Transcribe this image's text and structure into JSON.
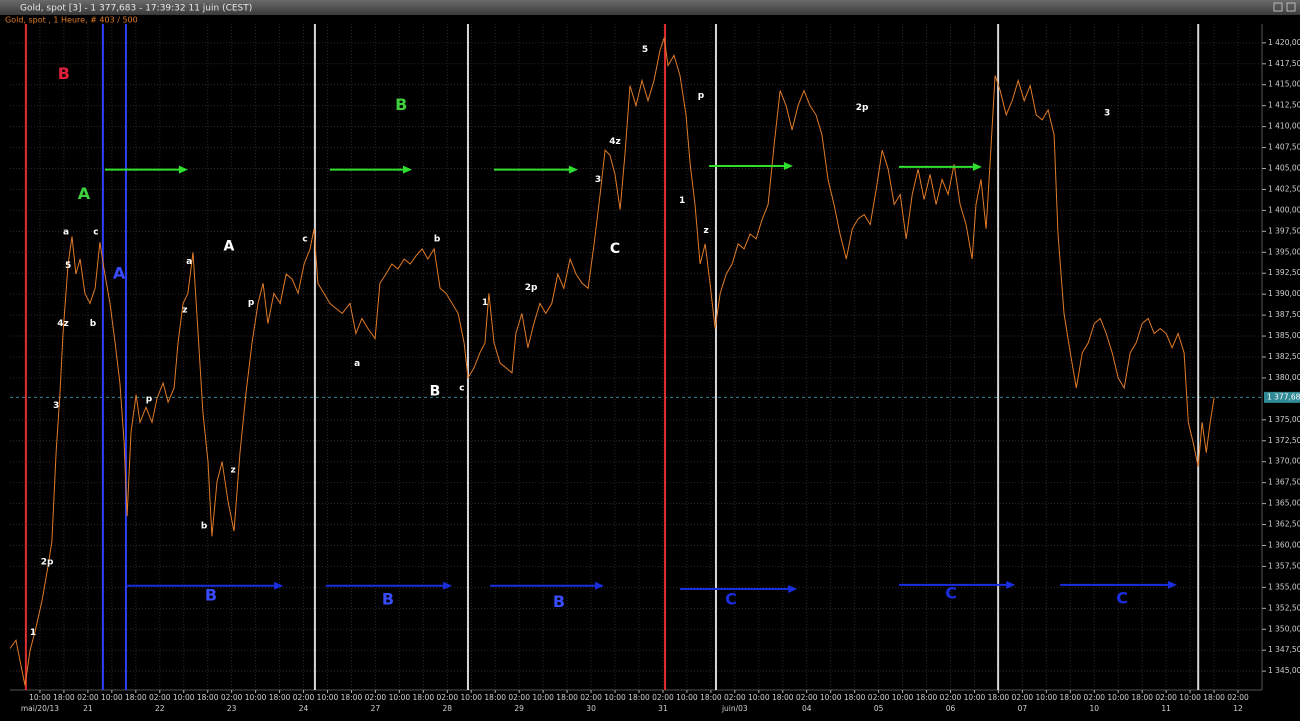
{
  "chart_data": {
    "type": "line",
    "title": "Gold, spot [3] - 1 377,683 - 17:39:32  11 juin (CEST)",
    "subtitle": "Gold, spot , 1 Heure, # 403 / 500",
    "color": "#e07b28",
    "grid": true,
    "xlim": [
      0,
      418
    ],
    "ylim": [
      1342.75,
      1422.25
    ],
    "x": [
      0,
      2,
      3.3,
      5,
      6.7,
      8.4,
      10.7,
      12.7,
      14,
      15.4,
      16.7,
      17.7,
      19.4,
      20.7,
      22,
      23.4,
      25,
      26.7,
      28.4,
      30,
      31.4,
      33.4,
      35.1,
      36.7,
      38.1,
      39.1,
      40.4,
      42.1,
      43.4,
      45.4,
      47.4,
      49.1,
      51.1,
      52.8,
      54.8,
      56.1,
      57.8,
      59.4,
      61.1,
      62.8,
      64.4,
      66.1,
      67.4,
      69.1,
      70.8,
      72.8,
      74.8,
      76.8,
      78.8,
      80.8,
      82.8,
      84.5,
      86.1,
      88.1,
      90.2,
      92.2,
      94.2,
      96.2,
      98.2,
      100.2,
      101.5,
      102.8,
      104.8,
      106.8,
      108.8,
      110.9,
      113.5,
      115.5,
      117.5,
      119.5,
      121.9,
      123.5,
      125.5,
      127.5,
      129.5,
      131.6,
      133.6,
      135.6,
      137.6,
      139.5,
      141.6,
      143.6,
      145.6,
      147.6,
      149.6,
      151.6,
      152.9,
      154.9,
      156.9,
      158.6,
      159.9,
      161.6,
      163.6,
      165.6,
      167.6,
      168.9,
      170.9,
      172.9,
      174.9,
      176.9,
      178.9,
      180.9,
      182.9,
      184.9,
      187,
      189,
      191,
      193,
      195,
      197,
      198.7,
      200.3,
      202,
      203.7,
      205.3,
      207,
      209,
      211,
      213,
      215,
      217,
      218.4,
      219.7,
      221.7,
      223.7,
      225.7,
      227.1,
      228.7,
      230.4,
      232.1,
      233.7,
      235.4,
      237.1,
      239.1,
      241.1,
      243.1,
      245.1,
      247.1,
      249.1,
      251.1,
      253.1,
      255.1,
      257.1,
      259.1,
      261.1,
      263.1,
      265.1,
      267.1,
      269.1,
      271.1,
      273.1,
      275.1,
      277.1,
      279.2,
      281.2,
      283.2,
      285.2,
      287.2,
      289.2,
      291.2,
      293.2,
      295.2,
      297.2,
      299.2,
      301.2,
      303.2,
      305.2,
      307.2,
      309.2,
      311.2,
      313.2,
      315.2,
      317.2,
      319.2,
      321.2,
      322.5,
      324.2,
      325.9,
      327.2,
      328.9,
      330.6,
      332.6,
      334.6,
      336.6,
      338.6,
      340.6,
      342.6,
      344.6,
      346.6,
      348.6,
      349.9,
      351.9,
      354,
      356,
      358,
      360,
      362,
      364,
      366,
      368,
      370,
      372,
      374,
      376,
      378,
      380,
      382,
      384,
      386,
      388,
      390,
      392,
      393.4,
      395,
      396.7,
      398,
      399.4,
      400.7,
      402
    ],
    "values": [
      1347.7,
      1348.7,
      1346.3,
      1343.3,
      1347.5,
      1349.8,
      1353.4,
      1357.5,
      1360.5,
      1371.1,
      1378.2,
      1385.3,
      1393.6,
      1396.9,
      1392.4,
      1394.2,
      1390.1,
      1388.9,
      1390.7,
      1396.2,
      1393.0,
      1388.9,
      1384.2,
      1379.4,
      1372.3,
      1363.5,
      1373.5,
      1378.0,
      1374.7,
      1376.5,
      1374.7,
      1377.6,
      1379.4,
      1377.1,
      1378.8,
      1384.2,
      1388.9,
      1390.1,
      1395.0,
      1385.3,
      1375.9,
      1370.0,
      1361.1,
      1367.6,
      1370.0,
      1365.2,
      1361.7,
      1371.1,
      1378.2,
      1384.2,
      1388.9,
      1391.3,
      1386.5,
      1390.1,
      1388.9,
      1392.4,
      1391.8,
      1390.1,
      1393.6,
      1395.4,
      1397.8,
      1391.3,
      1390.1,
      1388.9,
      1388.3,
      1387.7,
      1388.9,
      1385.3,
      1387.1,
      1385.9,
      1384.7,
      1391.3,
      1392.4,
      1393.6,
      1393.0,
      1394.2,
      1393.6,
      1394.6,
      1395.4,
      1394.2,
      1395.4,
      1390.7,
      1390.1,
      1388.9,
      1387.7,
      1384.2,
      1380.0,
      1381.2,
      1383.0,
      1384.2,
      1390.1,
      1384.2,
      1381.8,
      1381.2,
      1380.6,
      1385.3,
      1387.7,
      1383.6,
      1386.5,
      1388.9,
      1387.7,
      1388.9,
      1392.4,
      1390.7,
      1394.2,
      1392.4,
      1391.3,
      1390.7,
      1396.0,
      1401.9,
      1407.2,
      1406.6,
      1404.3,
      1400.1,
      1406.6,
      1414.9,
      1412.5,
      1415.5,
      1413.1,
      1415.5,
      1419.1,
      1420.6,
      1417.3,
      1418.5,
      1416.1,
      1411.4,
      1405.5,
      1400.7,
      1393.6,
      1396.0,
      1391.3,
      1385.9,
      1390.1,
      1392.4,
      1393.6,
      1396.0,
      1395.4,
      1397.2,
      1396.6,
      1398.9,
      1400.7,
      1407.8,
      1414.3,
      1412.5,
      1409.6,
      1412.5,
      1414.3,
      1412.5,
      1411.4,
      1409.0,
      1403.7,
      1400.7,
      1397.2,
      1394.2,
      1397.8,
      1399.0,
      1399.5,
      1398.3,
      1402.5,
      1407.2,
      1404.9,
      1400.7,
      1401.9,
      1396.6,
      1401.9,
      1404.9,
      1401.3,
      1404.3,
      1400.7,
      1403.7,
      1401.9,
      1405.5,
      1400.7,
      1398.3,
      1394.2,
      1400.7,
      1403.7,
      1397.8,
      1405.5,
      1416.1,
      1414.3,
      1411.4,
      1413.1,
      1415.5,
      1413.1,
      1414.9,
      1411.4,
      1410.8,
      1412.0,
      1409.0,
      1397.2,
      1387.7,
      1383.0,
      1378.8,
      1383.0,
      1384.2,
      1386.5,
      1387.1,
      1385.3,
      1383.0,
      1380.0,
      1378.8,
      1383.0,
      1384.2,
      1386.5,
      1387.1,
      1385.3,
      1385.9,
      1385.3,
      1383.6,
      1385.3,
      1383.0,
      1374.7,
      1372.3,
      1369.4,
      1374.7,
      1371.1,
      1374.7,
      1377.68
    ],
    "last_price": {
      "value": 1377.68,
      "label": "1 377,68"
    },
    "yticks": [
      {
        "value": 1345,
        "label": "1 345,00"
      },
      {
        "value": 1347.5,
        "label": "1 347,50"
      },
      {
        "value": 1350,
        "label": "1 350,00"
      },
      {
        "value": 1352.5,
        "label": "1 352,50"
      },
      {
        "value": 1355,
        "label": "1 355,00"
      },
      {
        "value": 1357.5,
        "label": "1 357,50"
      },
      {
        "value": 1360,
        "label": "1 360,00"
      },
      {
        "value": 1362.5,
        "label": "1 362,50"
      },
      {
        "value": 1365,
        "label": "1 365,00"
      },
      {
        "value": 1367.5,
        "label": "1 367,50"
      },
      {
        "value": 1370,
        "label": "1 370,00"
      },
      {
        "value": 1372.5,
        "label": "1 372,50"
      },
      {
        "value": 1375,
        "label": "1 375,00"
      },
      {
        "value": 1380,
        "label": "1 380,00"
      },
      {
        "value": 1382.5,
        "label": "1 382,50"
      },
      {
        "value": 1385,
        "label": "1 385,00"
      },
      {
        "value": 1387.5,
        "label": "1 387,50"
      },
      {
        "value": 1390,
        "label": "1 390,00"
      },
      {
        "value": 1392.5,
        "label": "1 392,50"
      },
      {
        "value": 1395,
        "label": "1 395,00"
      },
      {
        "value": 1397.5,
        "label": "1 397,50"
      },
      {
        "value": 1400,
        "label": "1 400,00"
      },
      {
        "value": 1402.5,
        "label": "1 402,50"
      },
      {
        "value": 1405,
        "label": "1 405,00"
      },
      {
        "value": 1407.5,
        "label": "1 407,50"
      },
      {
        "value": 1410,
        "label": "1 410,00"
      },
      {
        "value": 1412.5,
        "label": "1 412,50"
      },
      {
        "value": 1415,
        "label": "1 415,00"
      },
      {
        "value": 1417.5,
        "label": "1 417,50"
      },
      {
        "value": 1420,
        "label": "1 420,00"
      }
    ],
    "xticks": [
      {
        "value": 10,
        "label": "10:00"
      },
      {
        "value": 18,
        "label": "18:00"
      },
      {
        "value": 26,
        "label": "02:00"
      },
      {
        "value": 34,
        "label": "10:00"
      },
      {
        "value": 42,
        "label": "18:00"
      },
      {
        "value": 50,
        "label": "02:00"
      },
      {
        "value": 58,
        "label": "10:00"
      },
      {
        "value": 66,
        "label": "18:00"
      },
      {
        "value": 74,
        "label": "02:00"
      },
      {
        "value": 82,
        "label": "10:00"
      },
      {
        "value": 90,
        "label": "18:00"
      },
      {
        "value": 98,
        "label": "02:00"
      },
      {
        "value": 106,
        "label": "10:00"
      },
      {
        "value": 114,
        "label": "18:00"
      },
      {
        "value": 122,
        "label": "02:00"
      },
      {
        "value": 130,
        "label": "10:00"
      },
      {
        "value": 138,
        "label": "18:00"
      },
      {
        "value": 146,
        "label": "02:00"
      },
      {
        "value": 154,
        "label": "10:00"
      },
      {
        "value": 162,
        "label": "18:00"
      },
      {
        "value": 170,
        "label": "02:00"
      },
      {
        "value": 178,
        "label": "10:00"
      },
      {
        "value": 186,
        "label": "18:00"
      },
      {
        "value": 194,
        "label": "02:00"
      },
      {
        "value": 202,
        "label": "10:00"
      },
      {
        "value": 210,
        "label": "18:00"
      },
      {
        "value": 218,
        "label": "02:00"
      },
      {
        "value": 226,
        "label": "10:00"
      },
      {
        "value": 234,
        "label": "18:00"
      },
      {
        "value": 242,
        "label": "02:00"
      },
      {
        "value": 250,
        "label": "10:00"
      },
      {
        "value": 258,
        "label": "18:00"
      },
      {
        "value": 266,
        "label": "02:00"
      },
      {
        "value": 274,
        "label": "10:00"
      },
      {
        "value": 282,
        "label": "18:00"
      },
      {
        "value": 290,
        "label": "02:00"
      },
      {
        "value": 298,
        "label": "10:00"
      },
      {
        "value": 306,
        "label": "18:00"
      },
      {
        "value": 314,
        "label": "02:00"
      },
      {
        "value": 322,
        "label": "10:00"
      },
      {
        "value": 330,
        "label": "18:00"
      },
      {
        "value": 338,
        "label": "02:00"
      },
      {
        "value": 346,
        "label": "10:00"
      },
      {
        "value": 354,
        "label": "18:00"
      },
      {
        "value": 362,
        "label": "02:00"
      },
      {
        "value": 370,
        "label": "10:00"
      },
      {
        "value": 378,
        "label": "18:00"
      },
      {
        "value": 386,
        "label": "02:00"
      },
      {
        "value": 394,
        "label": "10:00"
      },
      {
        "value": 402,
        "label": "18:00"
      },
      {
        "value": 410,
        "label": "02:00"
      }
    ],
    "x_date_labels": [
      {
        "value": 10,
        "label": "mai/20/13"
      },
      {
        "value": 26,
        "label": "21"
      },
      {
        "value": 50,
        "label": "22"
      },
      {
        "value": 74,
        "label": "23"
      },
      {
        "value": 98,
        "label": "24"
      },
      {
        "value": 122,
        "label": "27"
      },
      {
        "value": 146,
        "label": "28"
      },
      {
        "value": 170,
        "label": "29"
      },
      {
        "value": 194,
        "label": "30"
      },
      {
        "value": 218,
        "label": "31"
      },
      {
        "value": 242,
        "label": "juin/03"
      },
      {
        "value": 266,
        "label": "04"
      },
      {
        "value": 290,
        "label": "05"
      },
      {
        "value": 314,
        "label": "06"
      },
      {
        "value": 338,
        "label": "07"
      },
      {
        "value": 362,
        "label": "10"
      },
      {
        "value": 386,
        "label": "11"
      },
      {
        "value": 410,
        "label": "12"
      }
    ],
    "vertical_lines": [
      {
        "x": 5.3,
        "color": "#e03030"
      },
      {
        "x": 31,
        "color": "#2f3fff"
      },
      {
        "x": 38.7,
        "color": "#2f3fff"
      },
      {
        "x": 101.8,
        "color": "#d8d8d8"
      },
      {
        "x": 152.9,
        "color": "#d8d8d8"
      },
      {
        "x": 218.7,
        "color": "#e03030"
      },
      {
        "x": 235.7,
        "color": "#d8d8d8"
      },
      {
        "x": 329.9,
        "color": "#d8d8d8"
      },
      {
        "x": 396.7,
        "color": "#d8d8d8"
      }
    ],
    "arrows": [
      {
        "x1": 31.7,
        "x2": 59.4,
        "y": 1404.86,
        "color": "#2ee02e"
      },
      {
        "x1": 106.8,
        "x2": 134.2,
        "y": 1404.86,
        "color": "#2ee02e"
      },
      {
        "x1": 161.6,
        "x2": 189.6,
        "y": 1404.86,
        "color": "#2ee02e"
      },
      {
        "x1": 233.4,
        "x2": 261.4,
        "y": 1405.3,
        "color": "#2ee02e"
      },
      {
        "x1": 296.8,
        "x2": 324.5,
        "y": 1405.2,
        "color": "#2ee02e"
      },
      {
        "x1": 39.1,
        "x2": 91.2,
        "y": 1355.2,
        "color": "#1a2ee0"
      },
      {
        "x1": 105.5,
        "x2": 147.6,
        "y": 1355.2,
        "color": "#1a2ee0"
      },
      {
        "x1": 160.3,
        "x2": 198.3,
        "y": 1355.2,
        "color": "#1a2ee0"
      },
      {
        "x1": 223.7,
        "x2": 262.8,
        "y": 1354.8,
        "color": "#1a2ee0"
      },
      {
        "x1": 296.8,
        "x2": 335.6,
        "y": 1355.3,
        "color": "#1a2ee0"
      },
      {
        "x1": 350.6,
        "x2": 389.6,
        "y": 1355.3,
        "color": "#1a2ee0"
      }
    ],
    "annotations": [
      {
        "text": "B",
        "x": 18,
        "y": 1416.2,
        "color": "#e0203a"
      },
      {
        "text": "A",
        "x": 24.7,
        "y": 1401.9,
        "color": "#3ed03e"
      },
      {
        "text": "B",
        "x": 130.6,
        "y": 1412.5,
        "color": "#3ed03e"
      },
      {
        "text": "A",
        "x": 36.4,
        "y": 1392.4,
        "color": "#3a4cff"
      },
      {
        "text": "A",
        "x": 73.1,
        "y": 1395.7,
        "color": "#ffffff"
      },
      {
        "text": "B",
        "x": 141.9,
        "y": 1378.4,
        "color": "#ffffff"
      },
      {
        "text": "C",
        "x": 202,
        "y": 1395.4,
        "color": "#ffffff"
      },
      {
        "text": "a",
        "x": 18.7,
        "y": 1397.4,
        "color": "#ffffff"
      },
      {
        "text": "c",
        "x": 28.7,
        "y": 1397.4,
        "color": "#ffffff"
      },
      {
        "text": "5",
        "x": 19.4,
        "y": 1393.4,
        "color": "#ffffff"
      },
      {
        "text": "4z",
        "x": 17.7,
        "y": 1386.5,
        "color": "#ffffff"
      },
      {
        "text": "b",
        "x": 27.7,
        "y": 1386.5,
        "color": "#ffffff"
      },
      {
        "text": "3",
        "x": 15.4,
        "y": 1376.7,
        "color": "#ffffff"
      },
      {
        "text": "2p",
        "x": 12.4,
        "y": 1358,
        "color": "#ffffff"
      },
      {
        "text": "1",
        "x": 7.7,
        "y": 1349.6,
        "color": "#ffffff"
      },
      {
        "text": "p",
        "x": 46.4,
        "y": 1377.5,
        "color": "#ffffff"
      },
      {
        "text": "a",
        "x": 59.8,
        "y": 1393.9,
        "color": "#ffffff"
      },
      {
        "text": "z",
        "x": 58.4,
        "y": 1388.1,
        "color": "#ffffff"
      },
      {
        "text": "b",
        "x": 64.8,
        "y": 1362.3,
        "color": "#ffffff"
      },
      {
        "text": "z",
        "x": 74.5,
        "y": 1369,
        "color": "#ffffff"
      },
      {
        "text": "p",
        "x": 80.5,
        "y": 1389,
        "color": "#ffffff"
      },
      {
        "text": "c",
        "x": 98.5,
        "y": 1396.6,
        "color": "#ffffff"
      },
      {
        "text": "a",
        "x": 115.9,
        "y": 1381.7,
        "color": "#ffffff"
      },
      {
        "text": "b",
        "x": 142.6,
        "y": 1396.6,
        "color": "#ffffff"
      },
      {
        "text": "c",
        "x": 150.9,
        "y": 1378.8,
        "color": "#ffffff"
      },
      {
        "text": "1",
        "x": 158.6,
        "y": 1389,
        "color": "#ffffff"
      },
      {
        "text": "2p",
        "x": 174,
        "y": 1390.8,
        "color": "#ffffff"
      },
      {
        "text": "3",
        "x": 196.3,
        "y": 1403.7,
        "color": "#ffffff"
      },
      {
        "text": "4z",
        "x": 202,
        "y": 1408.2,
        "color": "#ffffff"
      },
      {
        "text": "5",
        "x": 212,
        "y": 1419.2,
        "color": "#ffffff"
      },
      {
        "text": "p",
        "x": 230.7,
        "y": 1413.7,
        "color": "#ffffff"
      },
      {
        "text": "1",
        "x": 224.4,
        "y": 1401.2,
        "color": "#ffffff"
      },
      {
        "text": "z",
        "x": 232.4,
        "y": 1397.6,
        "color": "#ffffff"
      },
      {
        "text": "2p",
        "x": 284.5,
        "y": 1412.3,
        "color": "#ffffff"
      },
      {
        "text": "3",
        "x": 366.3,
        "y": 1411.6,
        "color": "#ffffff"
      },
      {
        "text": "B",
        "x": 67.1,
        "y": 1354,
        "color": "#3a4cff"
      },
      {
        "text": "B",
        "x": 126.2,
        "y": 1353.5,
        "color": "#3a4cff"
      },
      {
        "text": "B",
        "x": 183.3,
        "y": 1353.2,
        "color": "#3a4cff"
      },
      {
        "text": "C",
        "x": 240.7,
        "y": 1353.5,
        "color": "#1a2ee0"
      },
      {
        "text": "C",
        "x": 314.2,
        "y": 1354.2,
        "color": "#1a2ee0"
      },
      {
        "text": "C",
        "x": 371.3,
        "y": 1353.6,
        "color": "#1a2ee0"
      }
    ]
  }
}
